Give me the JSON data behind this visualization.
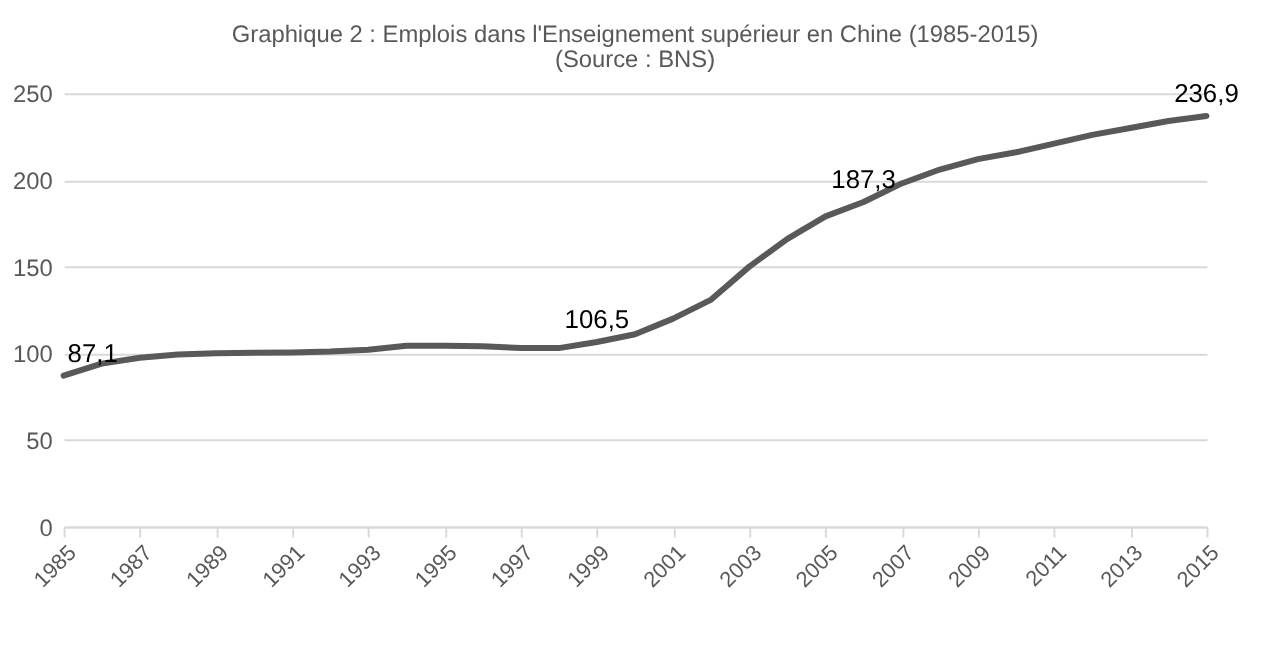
{
  "chart_data": {
    "type": "line",
    "title": "Graphique 2 : Emplois dans l'Enseignement supérieur en Chine (1985-2015)",
    "subtitle": "(Source : BNS)",
    "x": [
      1985,
      1986,
      1987,
      1988,
      1989,
      1990,
      1991,
      1992,
      1993,
      1994,
      1995,
      1996,
      1997,
      1998,
      1999,
      2000,
      2001,
      2002,
      2003,
      2004,
      2005,
      2006,
      2007,
      2008,
      2009,
      2010,
      2011,
      2012,
      2013,
      2014,
      2015
    ],
    "series": [
      {
        "color": "#595959",
        "values": [
          87.1,
          94,
          97.4,
          99.3,
          100,
          100.3,
          100.5,
          101,
          102,
          104.3,
          104.3,
          104,
          103,
          103,
          106.5,
          111,
          120,
          131,
          150,
          166,
          179,
          187.3,
          198,
          206,
          212,
          216,
          221,
          226,
          230,
          234,
          236.9
        ],
        "value_labels": [
          "87,1",
          null,
          null,
          null,
          null,
          null,
          null,
          null,
          null,
          null,
          null,
          null,
          null,
          null,
          "106,5",
          null,
          null,
          null,
          null,
          null,
          null,
          "187,3",
          null,
          null,
          null,
          null,
          null,
          null,
          null,
          null,
          "236,9"
        ]
      }
    ],
    "xlim": [
      1985,
      2015
    ],
    "xticks": [
      1985,
      1987,
      1989,
      1991,
      1993,
      1995,
      1997,
      1999,
      2001,
      2003,
      2005,
      2007,
      2009,
      2011,
      2013,
      2015
    ],
    "ylim": [
      0,
      250
    ],
    "yticks": [
      0,
      50,
      100,
      150,
      200,
      250
    ],
    "grid": "y",
    "marker": "none",
    "line_style": "solid",
    "legend": false
  }
}
